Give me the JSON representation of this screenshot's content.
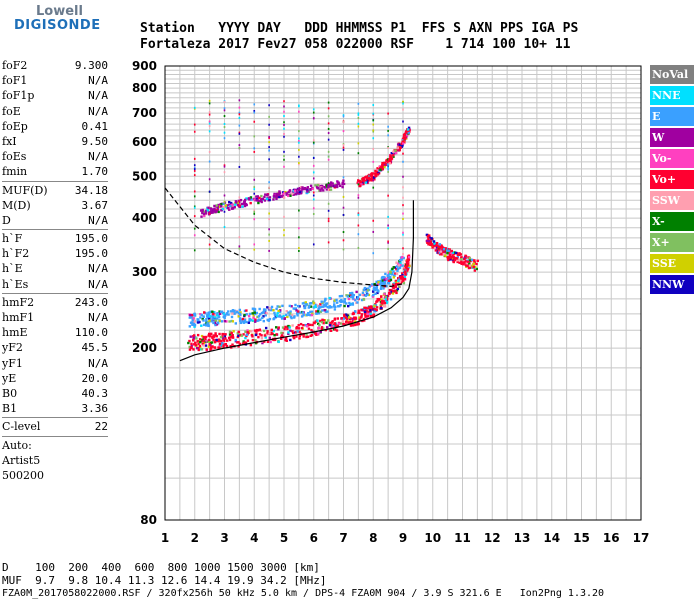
{
  "logo": {
    "line1": "Lowell",
    "line2": "DIGISONDE"
  },
  "header": {
    "labels": "Station   YYYY DAY   DDD HHMMSS P1  FFS S AXN PPS IGA PS",
    "values": "Fortaleza 2017 Fev27 058 022000 RSF    1 714 100 10+ 11"
  },
  "params": {
    "group1": [
      {
        "name": "foF2",
        "value": "9.300"
      },
      {
        "name": "foF1",
        "value": "N/A"
      },
      {
        "name": "foF1p",
        "value": "N/A"
      },
      {
        "name": "foE",
        "value": "N/A"
      },
      {
        "name": "foEp",
        "value": "0.41"
      },
      {
        "name": "fxI",
        "value": "9.50"
      },
      {
        "name": "foEs",
        "value": "N/A"
      },
      {
        "name": "fmin",
        "value": "1.70"
      }
    ],
    "group2": [
      {
        "name": "MUF(D)",
        "value": "34.18"
      },
      {
        "name": "M(D)",
        "value": "3.67"
      },
      {
        "name": "D",
        "value": "N/A"
      }
    ],
    "group3": [
      {
        "name": "h`F",
        "value": "195.0"
      },
      {
        "name": "h`F2",
        "value": "195.0"
      },
      {
        "name": "h`E",
        "value": "N/A"
      },
      {
        "name": "h`Es",
        "value": "N/A"
      }
    ],
    "group4": [
      {
        "name": "hmF2",
        "value": "243.0"
      },
      {
        "name": "hmF1",
        "value": "N/A"
      },
      {
        "name": "hmE",
        "value": "110.0"
      },
      {
        "name": "yF2",
        "value": "45.5"
      },
      {
        "name": "yF1",
        "value": "N/A"
      },
      {
        "name": "yE",
        "value": "20.0"
      },
      {
        "name": "B0",
        "value": "40.3"
      },
      {
        "name": "B1",
        "value": "3.36"
      }
    ],
    "group5": [
      {
        "name": "C-level",
        "value": "22"
      }
    ],
    "footer_lines": [
      "Auto:",
      "Artist5",
      "500200"
    ]
  },
  "legend": [
    {
      "label": "NoVal",
      "bg": "#808080",
      "fg": "#ffffff"
    },
    {
      "label": "NNE",
      "bg": "#00e0ff",
      "fg": "#ffffff"
    },
    {
      "label": "E",
      "bg": "#3aa0ff",
      "fg": "#ffffff"
    },
    {
      "label": "W",
      "bg": "#a000a0",
      "fg": "#ffffff"
    },
    {
      "label": "Vo-",
      "bg": "#ff40c0",
      "fg": "#ffffff"
    },
    {
      "label": "Vo+",
      "bg": "#ff0030",
      "fg": "#ffffff"
    },
    {
      "label": "SSW",
      "bg": "#ff9fb0",
      "fg": "#ffffff"
    },
    {
      "label": "X-",
      "bg": "#008000",
      "fg": "#ffffff"
    },
    {
      "label": "X+",
      "bg": "#80c060",
      "fg": "#ffffff"
    },
    {
      "label": "SSE",
      "bg": "#d0d000",
      "fg": "#ffffff"
    },
    {
      "label": "NNW",
      "bg": "#1000c0",
      "fg": "#ffffff"
    }
  ],
  "bottom": {
    "d_row": "D    100  200  400  600  800 1000 1500 3000 [km]",
    "muf_row": "MUF  9.7  9.8 10.4 11.3 12.6 14.4 19.9 34.2 [MHz]",
    "file_row": "FZA0M_2017058022000.RSF / 320fx256h 50 kHz 5.0 km / DPS-4 FZA0M 904 / 3.9 S 321.6 E   Ion2Png 1.3.20"
  },
  "chart_data": {
    "type": "scatter",
    "title": "",
    "xlabel": "",
    "ylabel": "",
    "xlim": [
      1,
      17
    ],
    "ylim": [
      80,
      900
    ],
    "y_scale": "log",
    "x_ticks": [
      "1",
      "2",
      "3",
      "4",
      "5",
      "6",
      "7",
      "8",
      "9",
      "10",
      "11",
      "12",
      "13",
      "14",
      "15",
      "16",
      "17"
    ],
    "y_ticks": [
      {
        "value": 80,
        "label": "80"
      },
      {
        "value": 200,
        "label": "200"
      },
      {
        "value": 300,
        "label": "300"
      },
      {
        "value": 400,
        "label": "400"
      },
      {
        "value": 500,
        "label": "500"
      },
      {
        "value": 600,
        "label": "600"
      },
      {
        "value": 700,
        "label": "700"
      },
      {
        "value": 800,
        "label": "800"
      },
      {
        "value": 900,
        "label": "900"
      }
    ],
    "grid": true,
    "legend_position": "right",
    "traces": [
      {
        "name": "trace-o-mode",
        "color": "#ff0030",
        "points": [
          [
            1.8,
            205
          ],
          [
            2.5,
            207
          ],
          [
            3,
            209
          ],
          [
            4,
            212
          ],
          [
            5,
            216
          ],
          [
            6,
            222
          ],
          [
            7,
            230
          ],
          [
            7.5,
            236
          ],
          [
            8,
            245
          ],
          [
            8.5,
            262
          ],
          [
            9,
            290
          ],
          [
            9.2,
            320
          ]
        ]
      },
      {
        "name": "trace-x-mode",
        "color": "#3aa0ff",
        "points": [
          [
            1.8,
            232
          ],
          [
            2.5,
            234
          ],
          [
            3,
            235
          ],
          [
            4,
            238
          ],
          [
            5,
            242
          ],
          [
            6,
            248
          ],
          [
            7,
            256
          ],
          [
            8,
            272
          ],
          [
            8.5,
            290
          ],
          [
            9,
            320
          ]
        ]
      },
      {
        "name": "trace-upper-F",
        "color": "#ff0030",
        "points": [
          [
            7.5,
            480
          ],
          [
            8,
            500
          ],
          [
            8.5,
            540
          ],
          [
            9,
            600
          ],
          [
            9.2,
            640
          ]
        ]
      },
      {
        "name": "trace-multihop",
        "color": "#a000a0",
        "points": [
          [
            2.2,
            410
          ],
          [
            3,
            425
          ],
          [
            4,
            440
          ],
          [
            5,
            455
          ],
          [
            6,
            468
          ],
          [
            7,
            480
          ]
        ]
      },
      {
        "name": "trace-spread",
        "color": "#ff0030",
        "points": [
          [
            9.8,
            360
          ],
          [
            10.2,
            340
          ],
          [
            10.5,
            330
          ],
          [
            11,
            320
          ],
          [
            11.5,
            310
          ]
        ]
      }
    ],
    "profile_curve": [
      [
        1.5,
        187
      ],
      [
        2,
        193
      ],
      [
        3,
        200
      ],
      [
        4,
        206
      ],
      [
        5,
        212
      ],
      [
        6,
        218
      ],
      [
        7,
        225
      ],
      [
        8,
        236
      ],
      [
        8.6,
        248
      ],
      [
        9,
        262
      ],
      [
        9.2,
        275
      ],
      [
        9.3,
        300
      ],
      [
        9.35,
        360
      ],
      [
        9.35,
        440
      ]
    ],
    "dashed_curve": [
      [
        1,
        470
      ],
      [
        2,
        385
      ],
      [
        3,
        340
      ],
      [
        4,
        316
      ],
      [
        5,
        300
      ],
      [
        6,
        290
      ],
      [
        7,
        284
      ],
      [
        8,
        280
      ],
      [
        8.6,
        278
      ],
      [
        9,
        282
      ]
    ]
  }
}
